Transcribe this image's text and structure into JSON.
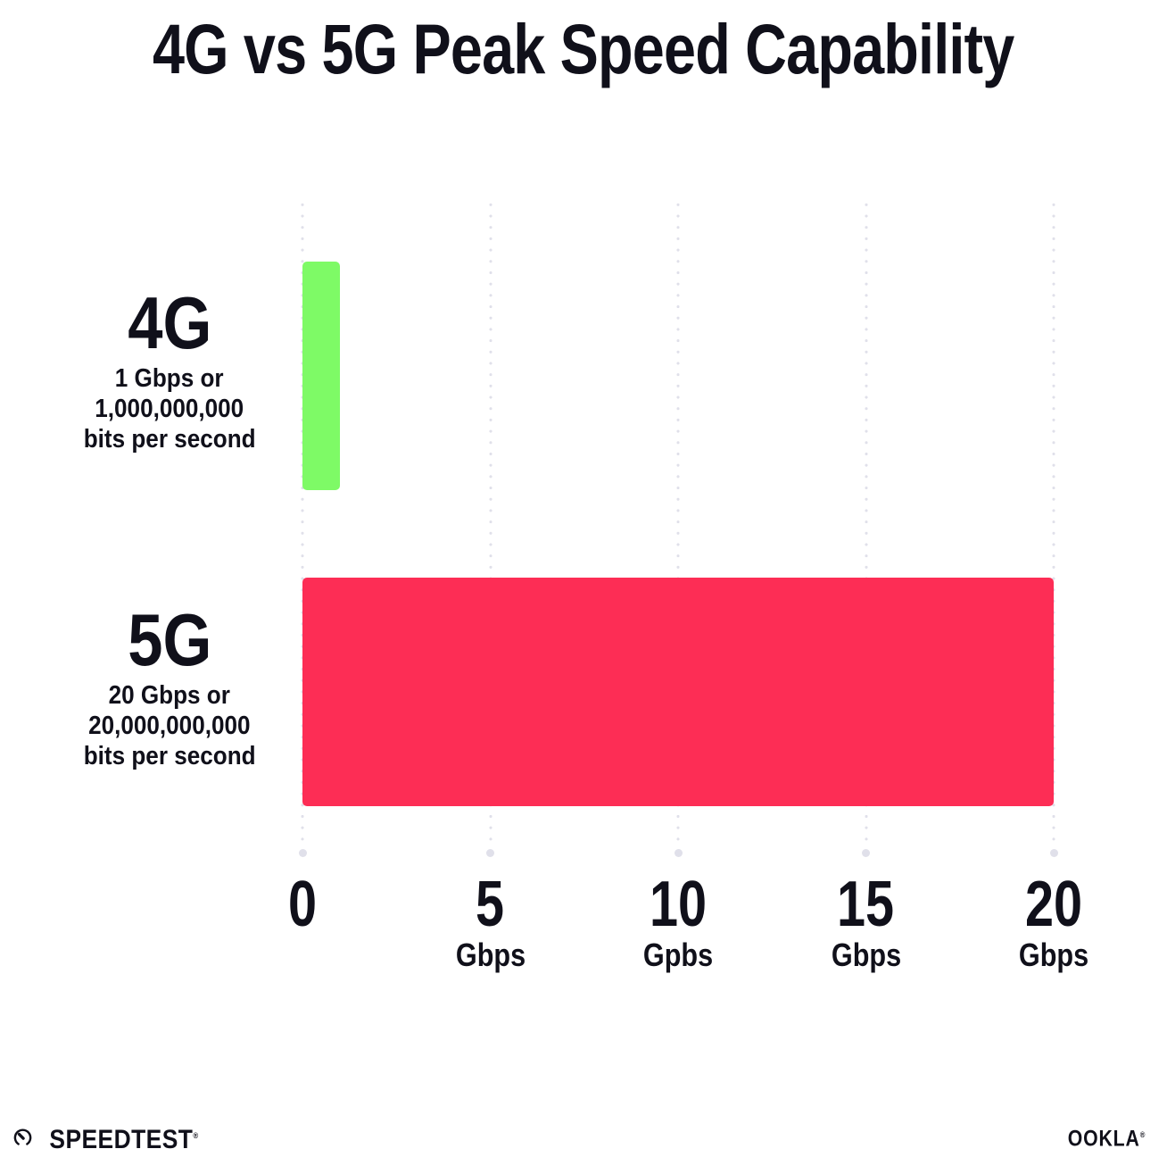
{
  "title": "4G vs 5G Peak Speed Capability",
  "colors": {
    "bar_4g": "#7EFA66",
    "bar_5g": "#FD2D55",
    "grid_dot": "#E0E0EA",
    "text": "#10101A"
  },
  "chart_data": {
    "type": "bar",
    "orientation": "horizontal",
    "title": "4G vs 5G Peak Speed Capability",
    "categories": [
      "4G",
      "5G"
    ],
    "values": [
      1,
      20
    ],
    "value_unit": "Gbps",
    "xlim": [
      0,
      20
    ],
    "grid": "dotted vertical gridlines at 0, 5, 10, 15, 20 with round end dots",
    "legend_position": "none",
    "bar_colors": [
      "#7EFA66",
      "#FD2D55"
    ],
    "x_ticks": [
      {
        "label": "0",
        "unit": ""
      },
      {
        "label": "5",
        "unit": "Gbps"
      },
      {
        "label": "10",
        "unit": "Gpbs"
      },
      {
        "label": "15",
        "unit": "Gbps"
      },
      {
        "label": "20",
        "unit": "Gbps"
      }
    ],
    "row_labels": [
      {
        "name": "4G",
        "sub_lines": [
          "1 Gbps or",
          "1,000,000,000",
          "bits per second"
        ]
      },
      {
        "name": "5G",
        "sub_lines": [
          "20 Gbps or",
          "20,000,000,000",
          "bits per second"
        ]
      }
    ]
  },
  "footer": {
    "speedtest_label": "SPEEDTEST",
    "speedtest_mark": "®",
    "ookla_label": "OOKLA",
    "ookla_mark": "®"
  }
}
